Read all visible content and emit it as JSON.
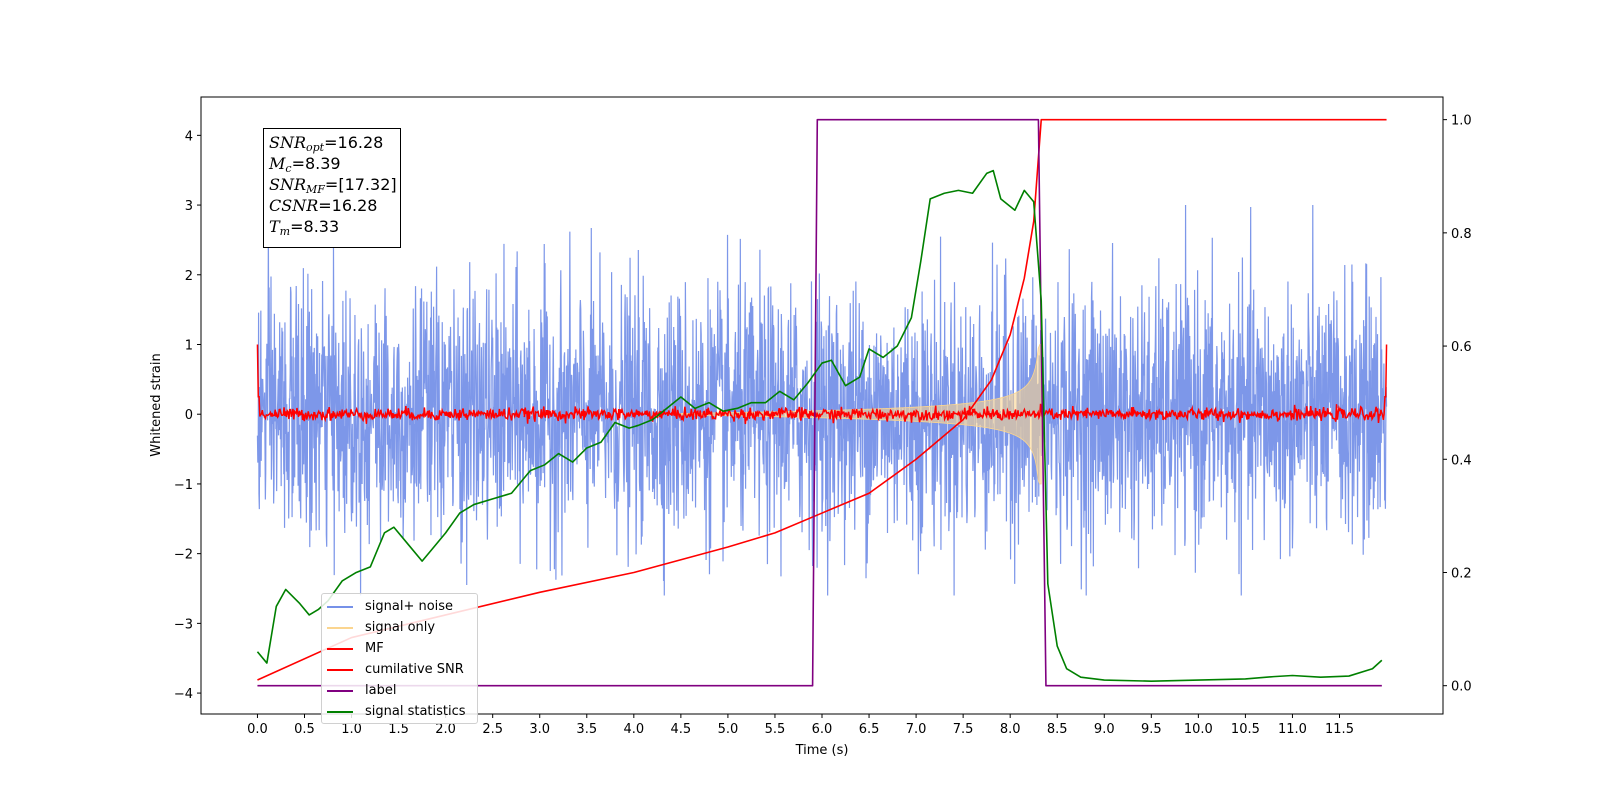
{
  "chart_data": {
    "type": "line",
    "xlabel": "Time (s)",
    "ylabel": "Whitened strain",
    "xlim": [
      -0.6,
      12.6
    ],
    "ylim": [
      -4.3,
      4.55
    ],
    "ylim_right": [
      -0.05,
      1.04
    ],
    "x_ticks": [
      "0.0",
      "0.5",
      "1.0",
      "1.5",
      "2.0",
      "2.5",
      "3.0",
      "3.5",
      "4.0",
      "4.5",
      "5.0",
      "5.5",
      "6.0",
      "6.5",
      "7.0",
      "7.5",
      "8.0",
      "8.5",
      "9.0",
      "9.5",
      "10.0",
      "10.5",
      "11.0",
      "11.5"
    ],
    "y_ticks": [
      "4",
      "3",
      "2",
      "1",
      "0",
      "−1",
      "−2",
      "−3",
      "−4"
    ],
    "y_ticks_right": [
      "1.0",
      "0.8",
      "0.6",
      "0.4",
      "0.2",
      "0.0"
    ],
    "annotation": [
      {
        "sym": "SNR",
        "sub": "opt",
        "val": "=16.28"
      },
      {
        "sym": "M",
        "sub": "c",
        "val": "=8.39"
      },
      {
        "sym": "SNR",
        "sub": "MF",
        "val": "=[17.32]"
      },
      {
        "sym": "CSNR",
        "sub": "",
        "val": "=16.28"
      },
      {
        "sym": "T",
        "sub": "m",
        "val": "=8.33"
      }
    ],
    "series": [
      {
        "name": "signal+ noise",
        "color": "#7691e8",
        "axis": "left",
        "description_range": [
          -2.6,
          3.0
        ],
        "x_range": [
          0.0,
          12.0
        ]
      },
      {
        "name": "signal only",
        "color": "#fbd58f",
        "axis": "left",
        "chirp_start": 4.5,
        "chirp_end": 8.33,
        "peak_amplitude": 1.0
      },
      {
        "name": "MF",
        "color": "#ff0000",
        "axis": "left",
        "x_range": [
          0.0,
          12.0
        ],
        "level": 0.0,
        "edge_value": 1.0
      },
      {
        "name": "cumilative SNR",
        "color": "#ff0000",
        "axis": "right",
        "x": [
          0.0,
          1.0,
          2.0,
          3.0,
          4.0,
          5.0,
          5.5,
          6.0,
          6.5,
          7.0,
          7.5,
          7.8,
          8.0,
          8.15,
          8.25,
          8.33,
          12.0
        ],
        "y": [
          0.01,
          0.085,
          0.125,
          0.165,
          0.2,
          0.245,
          0.27,
          0.305,
          0.34,
          0.4,
          0.47,
          0.54,
          0.62,
          0.72,
          0.82,
          1.0,
          1.0
        ]
      },
      {
        "name": "label",
        "color": "#800080",
        "axis": "right",
        "x": [
          0.0,
          5.9,
          5.95,
          8.3,
          8.38,
          11.95
        ],
        "y": [
          0.0,
          0.0,
          1.0,
          1.0,
          0.0,
          0.0
        ]
      },
      {
        "name": "signal statistics",
        "color": "#008000",
        "axis": "right",
        "x": [
          0.0,
          0.1,
          0.2,
          0.3,
          0.45,
          0.55,
          0.65,
          0.75,
          0.9,
          1.05,
          1.2,
          1.35,
          1.45,
          1.6,
          1.75,
          1.85,
          2.0,
          2.15,
          2.3,
          2.5,
          2.7,
          2.9,
          3.05,
          3.2,
          3.35,
          3.5,
          3.65,
          3.8,
          3.95,
          4.05,
          4.2,
          4.35,
          4.5,
          4.65,
          4.8,
          4.95,
          5.1,
          5.25,
          5.4,
          5.55,
          5.7,
          5.85,
          6.0,
          6.1,
          6.25,
          6.4,
          6.5,
          6.65,
          6.8,
          6.95,
          7.05,
          7.15,
          7.3,
          7.45,
          7.6,
          7.75,
          7.82,
          7.9,
          8.05,
          8.15,
          8.25,
          8.33,
          8.4,
          8.5,
          8.6,
          8.75,
          9.0,
          9.5,
          10.0,
          10.5,
          10.8,
          11.0,
          11.3,
          11.6,
          11.85,
          11.95
        ],
        "y": [
          0.06,
          0.04,
          0.14,
          0.17,
          0.145,
          0.125,
          0.135,
          0.15,
          0.185,
          0.2,
          0.21,
          0.27,
          0.28,
          0.25,
          0.22,
          0.24,
          0.27,
          0.305,
          0.32,
          0.33,
          0.34,
          0.38,
          0.39,
          0.41,
          0.395,
          0.42,
          0.43,
          0.465,
          0.455,
          0.46,
          0.47,
          0.49,
          0.51,
          0.49,
          0.5,
          0.485,
          0.49,
          0.5,
          0.5,
          0.52,
          0.505,
          0.535,
          0.57,
          0.575,
          0.53,
          0.545,
          0.595,
          0.58,
          0.6,
          0.65,
          0.75,
          0.86,
          0.87,
          0.875,
          0.87,
          0.905,
          0.91,
          0.86,
          0.84,
          0.875,
          0.855,
          0.68,
          0.18,
          0.07,
          0.03,
          0.015,
          0.01,
          0.008,
          0.01,
          0.012,
          0.016,
          0.018,
          0.015,
          0.017,
          0.03,
          0.045
        ]
      }
    ]
  }
}
